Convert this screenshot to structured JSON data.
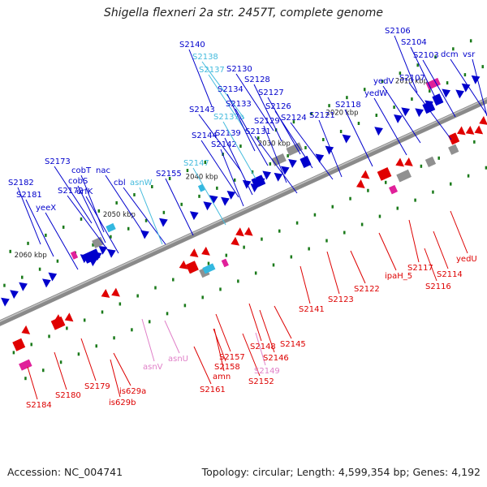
{
  "title": "Shigella flexneri 2a str. 2457T, complete genome",
  "footer": {
    "accession": "Accession: NC_004741",
    "summary": "Topology: circular; Length: 4,599,354 bp; Genes: 4,192"
  },
  "colors": {
    "forward_gene": "#0000cc",
    "reverse_gene": "#e00000",
    "trna": "#33b8e0",
    "trna_label": "#44bbdd",
    "pink_gene": "#e080c8",
    "pseudo": "#909090",
    "backbone": "#808080"
  },
  "scale_ticks": [
    {
      "label": "2060 kbp"
    },
    {
      "label": "2050 kbp"
    },
    {
      "label": "2040 kbp"
    },
    {
      "label": "2030 kbp"
    },
    {
      "label": "2020 kbp"
    },
    {
      "label": "2010 kbp"
    }
  ],
  "top_labels": [
    {
      "text": "S2182",
      "color": "blue"
    },
    {
      "text": "S2181",
      "color": "blue"
    },
    {
      "text": "yeeX",
      "color": "blue"
    },
    {
      "text": "S2173",
      "color": "blue"
    },
    {
      "text": "S2172",
      "color": "blue"
    },
    {
      "text": "cobT",
      "color": "blue"
    },
    {
      "text": "cobS",
      "color": "blue"
    },
    {
      "text": "erfK",
      "color": "blue"
    },
    {
      "text": "nac",
      "color": "blue"
    },
    {
      "text": "cbl",
      "color": "blue"
    },
    {
      "text": "asnW",
      "color": "cyan"
    },
    {
      "text": "S2155",
      "color": "blue"
    },
    {
      "text": "S2147",
      "color": "cyan"
    },
    {
      "text": "S2144",
      "color": "blue"
    },
    {
      "text": "S2143",
      "color": "blue"
    },
    {
      "text": "S2142",
      "color": "blue"
    },
    {
      "text": "S2139",
      "color": "blue"
    },
    {
      "text": "S2137a",
      "color": "cyan"
    },
    {
      "text": "S2137",
      "color": "cyan"
    },
    {
      "text": "S2138",
      "color": "cyan"
    },
    {
      "text": "S2140",
      "color": "blue"
    },
    {
      "text": "S2134",
      "color": "blue"
    },
    {
      "text": "S2133",
      "color": "blue"
    },
    {
      "text": "S2130",
      "color": "blue"
    },
    {
      "text": "S2131",
      "color": "blue"
    },
    {
      "text": "S2129",
      "color": "blue"
    },
    {
      "text": "S2128",
      "color": "blue"
    },
    {
      "text": "S2127",
      "color": "blue"
    },
    {
      "text": "S2126",
      "color": "blue"
    },
    {
      "text": "S2124",
      "color": "blue"
    },
    {
      "text": "S2121",
      "color": "blue"
    },
    {
      "text": "S2118",
      "color": "blue"
    },
    {
      "text": "yedW",
      "color": "blue"
    },
    {
      "text": "yedV",
      "color": "blue"
    },
    {
      "text": "S2107",
      "color": "blue"
    },
    {
      "text": "S2106",
      "color": "blue"
    },
    {
      "text": "S2104",
      "color": "blue"
    },
    {
      "text": "S2103",
      "color": "blue"
    },
    {
      "text": "dcm",
      "color": "blue"
    },
    {
      "text": "vsr",
      "color": "blue"
    }
  ],
  "bottom_labels": [
    {
      "text": "S2184",
      "color": "red"
    },
    {
      "text": "S2180",
      "color": "red"
    },
    {
      "text": "S2179",
      "color": "red"
    },
    {
      "text": "is629a",
      "color": "red"
    },
    {
      "text": "is629b",
      "color": "red"
    },
    {
      "text": "asnV",
      "color": "pink"
    },
    {
      "text": "asnU",
      "color": "pink"
    },
    {
      "text": "S2161",
      "color": "red"
    },
    {
      "text": "amn",
      "color": "red"
    },
    {
      "text": "S2158",
      "color": "red"
    },
    {
      "text": "S2157",
      "color": "red"
    },
    {
      "text": "S2152",
      "color": "red"
    },
    {
      "text": "S2149",
      "color": "pink"
    },
    {
      "text": "S2148",
      "color": "red"
    },
    {
      "text": "S2146",
      "color": "red"
    },
    {
      "text": "S2145",
      "color": "red"
    },
    {
      "text": "S2141",
      "color": "red"
    },
    {
      "text": "S2123",
      "color": "red"
    },
    {
      "text": "S2122",
      "color": "red"
    },
    {
      "text": "ipaH_5",
      "color": "red"
    },
    {
      "text": "S2117",
      "color": "red"
    },
    {
      "text": "S2116",
      "color": "red"
    },
    {
      "text": "S2114",
      "color": "red"
    },
    {
      "text": "yedU",
      "color": "red"
    }
  ]
}
